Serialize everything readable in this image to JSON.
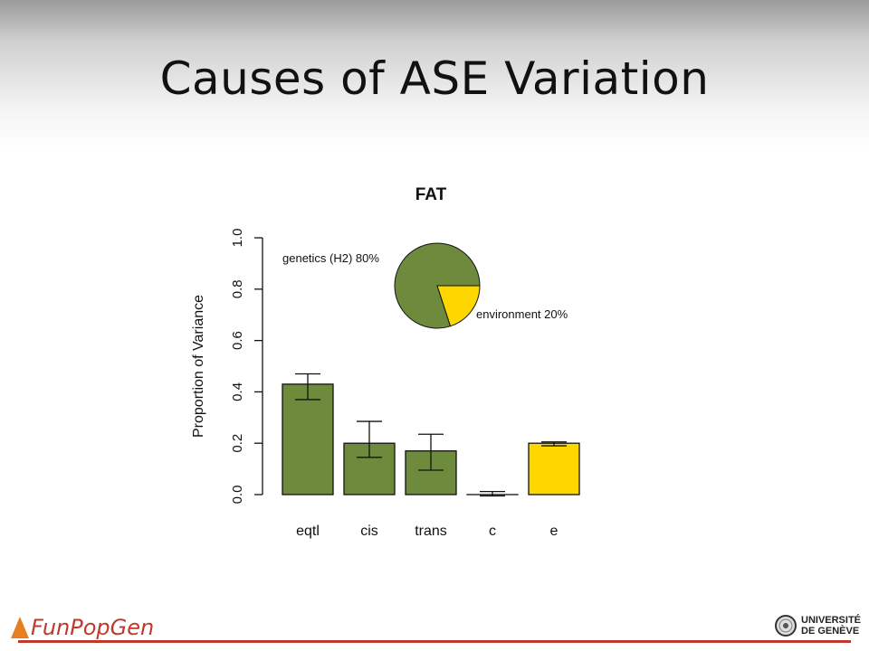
{
  "slide": {
    "title": "Causes of ASE Variation"
  },
  "footer": {
    "brand": "FunPopGen",
    "university_line1": "UNIVERSITÉ",
    "university_line2": "DE GENÈVE"
  },
  "chart_data": [
    {
      "type": "bar",
      "title": "FAT",
      "xlabel": "",
      "ylabel": "Proportion of Variance",
      "categories": [
        "eqtl",
        "cis",
        "trans",
        "c",
        "e"
      ],
      "values": [
        0.43,
        0.2,
        0.17,
        0.0,
        0.2
      ],
      "error_low": [
        0.37,
        0.145,
        0.095,
        -0.005,
        0.19
      ],
      "error_high": [
        0.47,
        0.285,
        0.235,
        0.012,
        0.205
      ],
      "colors": [
        "#6e8a3d",
        "#6e8a3d",
        "#6e8a3d",
        "#6e8a3d",
        "#ffd700"
      ],
      "ylim": [
        0,
        1.0
      ],
      "yticks": [
        "0.0",
        "0.2",
        "0.4",
        "0.6",
        "0.8",
        "1.0"
      ],
      "grid": false
    },
    {
      "type": "pie",
      "labels": [
        "genetics (H2) 80%",
        "environment 20%"
      ],
      "values": [
        80,
        20
      ],
      "colors": [
        "#6e8a3d",
        "#ffd700"
      ]
    }
  ]
}
